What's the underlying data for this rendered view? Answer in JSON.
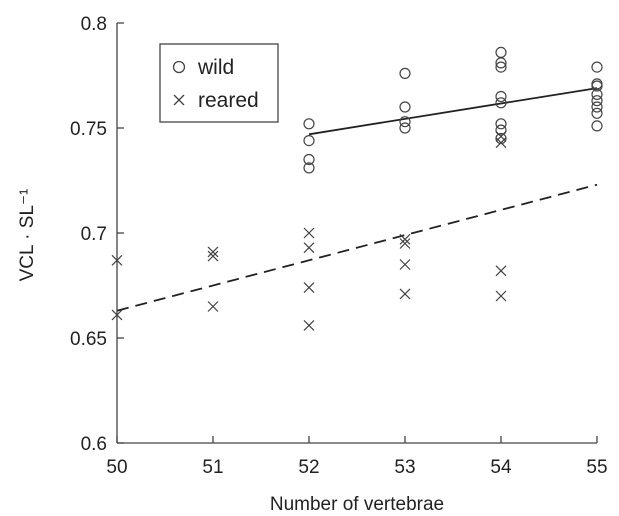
{
  "chart_data": {
    "type": "scatter",
    "xlabel": "Number of vertebrae",
    "ylabel": "VCL · SL⁻¹",
    "xlim": [
      50,
      55
    ],
    "ylim": [
      0.6,
      0.8
    ],
    "x_ticks": [
      "50",
      "51",
      "52",
      "53",
      "54",
      "55"
    ],
    "y_ticks": [
      "0.6",
      "0.65",
      "0.7",
      "0.75",
      "0.8"
    ],
    "legend_position": "top-left",
    "series": [
      {
        "name": "wild",
        "marker": "circle",
        "points": [
          [
            52,
            0.752
          ],
          [
            52,
            0.744
          ],
          [
            52,
            0.735
          ],
          [
            52,
            0.731
          ],
          [
            53,
            0.776
          ],
          [
            53,
            0.76
          ],
          [
            53,
            0.753
          ],
          [
            53,
            0.75
          ],
          [
            54,
            0.786
          ],
          [
            54,
            0.781
          ],
          [
            54,
            0.779
          ],
          [
            54,
            0.765
          ],
          [
            54,
            0.762
          ],
          [
            54,
            0.752
          ],
          [
            54,
            0.749
          ],
          [
            54,
            0.745
          ],
          [
            55,
            0.779
          ],
          [
            55,
            0.771
          ],
          [
            55,
            0.77
          ],
          [
            55,
            0.766
          ],
          [
            55,
            0.763
          ],
          [
            55,
            0.76
          ],
          [
            55,
            0.757
          ],
          [
            55,
            0.751
          ]
        ],
        "fit": {
          "style": "solid",
          "x": [
            52,
            55
          ],
          "y": [
            0.747,
            0.769
          ]
        }
      },
      {
        "name": "reared",
        "marker": "x",
        "points": [
          [
            50,
            0.687
          ],
          [
            50,
            0.661
          ],
          [
            51,
            0.691
          ],
          [
            51,
            0.689
          ],
          [
            51,
            0.665
          ],
          [
            52,
            0.7
          ],
          [
            52,
            0.693
          ],
          [
            52,
            0.674
          ],
          [
            52,
            0.656
          ],
          [
            53,
            0.697
          ],
          [
            53,
            0.695
          ],
          [
            53,
            0.685
          ],
          [
            53,
            0.671
          ],
          [
            54,
            0.746
          ],
          [
            54,
            0.743
          ],
          [
            54,
            0.682
          ],
          [
            54,
            0.67
          ]
        ],
        "fit": {
          "style": "dashed",
          "x": [
            50,
            55
          ],
          "y": [
            0.663,
            0.723
          ]
        }
      }
    ]
  }
}
